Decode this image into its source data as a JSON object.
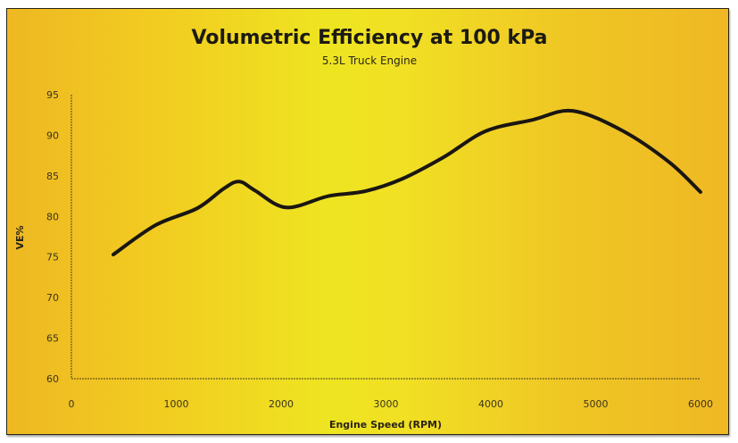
{
  "chart_data": {
    "type": "line",
    "title": "Volumetric Efficiency at 100 kPa",
    "subtitle": "5.3L Truck Engine",
    "xlabel": "Engine Speed (RPM)",
    "ylabel": "VE%",
    "xlim": [
      0,
      6000
    ],
    "ylim": [
      60,
      95
    ],
    "x_ticks": [
      0,
      1000,
      2000,
      3000,
      4000,
      5000,
      6000
    ],
    "x_tick_labels": [
      "0",
      "1000",
      "2000",
      "3000",
      "4000",
      "5000",
      "6000"
    ],
    "y_ticks": [
      60,
      65,
      70,
      75,
      80,
      85,
      90,
      95
    ],
    "y_tick_labels": [
      "60",
      "65",
      "70",
      "75",
      "80",
      "85",
      "90",
      "95"
    ],
    "grid": false,
    "legend": "none",
    "series": [
      {
        "name": "VE%",
        "color": "#1a1612",
        "x": [
          400,
          800,
          1200,
          1450,
          1600,
          1750,
          2050,
          2450,
          2800,
          3150,
          3550,
          3950,
          4400,
          4780,
          5250,
          5700,
          6000
        ],
        "y": [
          75.3,
          78.9,
          81.0,
          83.4,
          84.3,
          83.2,
          81.1,
          82.5,
          83.1,
          84.6,
          87.3,
          90.5,
          91.9,
          93.0,
          90.6,
          86.7,
          83.0
        ]
      }
    ]
  }
}
